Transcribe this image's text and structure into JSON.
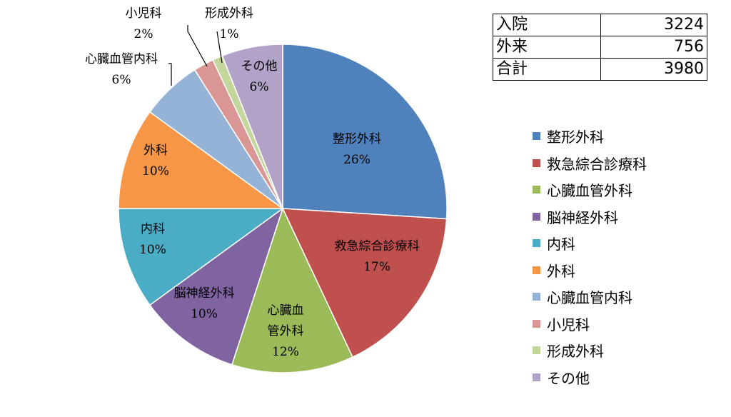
{
  "chart_data": {
    "type": "pie",
    "slices": [
      {
        "label": "整形外科",
        "pct_label": "26%",
        "value": 26,
        "color": "#4f81bd"
      },
      {
        "label": "救急綜合診療科",
        "pct_label": "17%",
        "value": 17,
        "color": "#c0504d"
      },
      {
        "label": "心臓血管外科",
        "pct_label": "12%",
        "value": 12,
        "color": "#9bbb59"
      },
      {
        "label": "脳神経外科",
        "pct_label": "10%",
        "value": 10,
        "color": "#8064a2"
      },
      {
        "label": "内科",
        "pct_label": "10%",
        "value": 10,
        "color": "#4bacc6"
      },
      {
        "label": "外科",
        "pct_label": "10%",
        "value": 10,
        "color": "#f79646"
      },
      {
        "label": "心臓血管内科",
        "pct_label": "6%",
        "value": 6,
        "color": "#95b3d7"
      },
      {
        "label": "小児科",
        "pct_label": "2%",
        "value": 2,
        "color": "#d99694"
      },
      {
        "label": "形成外科",
        "pct_label": "1%",
        "value": 1,
        "color": "#c3d69b"
      },
      {
        "label": "その他",
        "pct_label": "6%",
        "value": 6,
        "color": "#b2a2c7"
      }
    ],
    "slice_label_lines": [
      [
        "整形外科"
      ],
      [
        "救急綜合診療科"
      ],
      [
        "心臓血",
        "管外科"
      ],
      [
        "脳神経外科"
      ],
      [
        "内科"
      ],
      [
        "外科"
      ],
      [
        "心臓血管内科"
      ],
      [
        "小児科"
      ],
      [
        "形成外科"
      ],
      [
        "その他"
      ]
    ],
    "legend_placement": "right"
  },
  "summary_table": [
    {
      "label": "入院",
      "value": "3224"
    },
    {
      "label": "外来",
      "value": "756"
    },
    {
      "label": "合計",
      "value": "3980"
    }
  ]
}
